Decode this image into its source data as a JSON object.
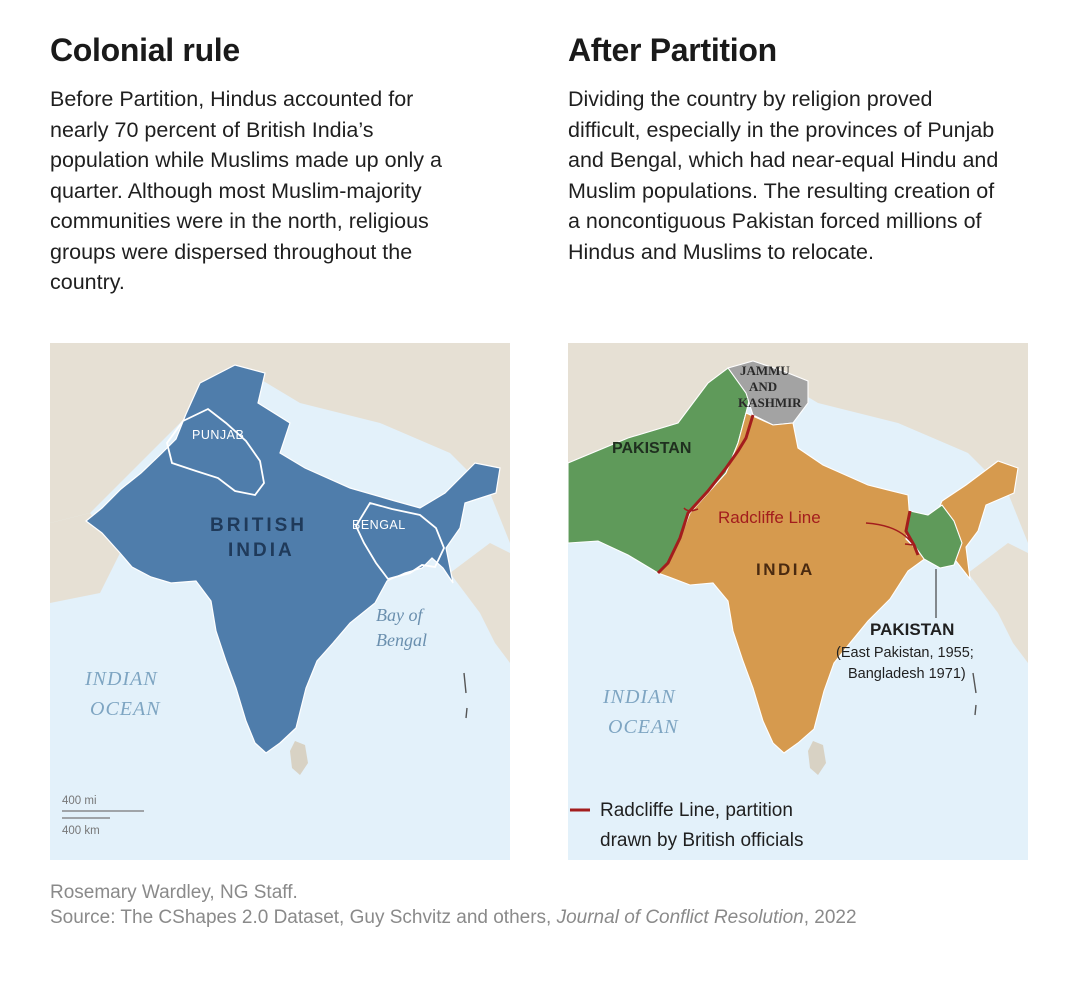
{
  "left": {
    "title": "Colonial rule",
    "description": "Before Partition, Hindus accounted for nearly 70 percent of British India’s population while Muslims made up only a quarter. Although most Muslim-majority communities were in the north, religious groups were dispersed throughout the country.",
    "map": {
      "region_label_line1": "BRITISH",
      "region_label_line2": "INDIA",
      "punjab_label": "PUNJAB",
      "bengal_label": "BENGAL",
      "bay_label_line1": "Bay of",
      "bay_label_line2": "Bengal",
      "ocean_label_line1": "INDIAN",
      "ocean_label_line2": "OCEAN",
      "scale_mi": "400 mi",
      "scale_km": "400 km"
    }
  },
  "right": {
    "title": "After Partition",
    "description": "Dividing the country by religion proved difficult, especially in the provinces of Punjab and Bengal, which had near-equal Hindu and Muslim populations. The resulting creation of a noncontiguous Pakistan forced millions of Hindus and Muslims to relocate.",
    "map": {
      "jk_line1": "JAMMU",
      "jk_line2": "AND",
      "jk_line3": "KASHMIR",
      "west_pakistan_label": "PAKISTAN",
      "radcliffe_label": "Radcliffe Line",
      "india_label": "INDIA",
      "east_pakistan_label": "PAKISTAN",
      "east_pakistan_note1": "(East Pakistan, 1955;",
      "east_pakistan_note2": "Bangladesh 1971)",
      "ocean_label_line1": "INDIAN",
      "ocean_label_line2": "OCEAN",
      "legend_line1": "Radcliffe Line, partition",
      "legend_line2": "drawn by British officials"
    }
  },
  "colors": {
    "british_india": "#4f7dab",
    "india": "#d69a4e",
    "pakistan": "#5f9a5a",
    "kashmir": "#a3a3a3",
    "radcliffe_line": "#a31d1d",
    "ocean": "#e3f1fa",
    "land_other": "#e6e0d4"
  },
  "credit": {
    "line1": "Rosemary Wardley, NG Staff.",
    "source_prefix": "Source: The CShapes 2.0 Dataset, Guy Schvitz and others, ",
    "journal": "Journal of Conflict Resolution",
    "year": ", 2022"
  }
}
